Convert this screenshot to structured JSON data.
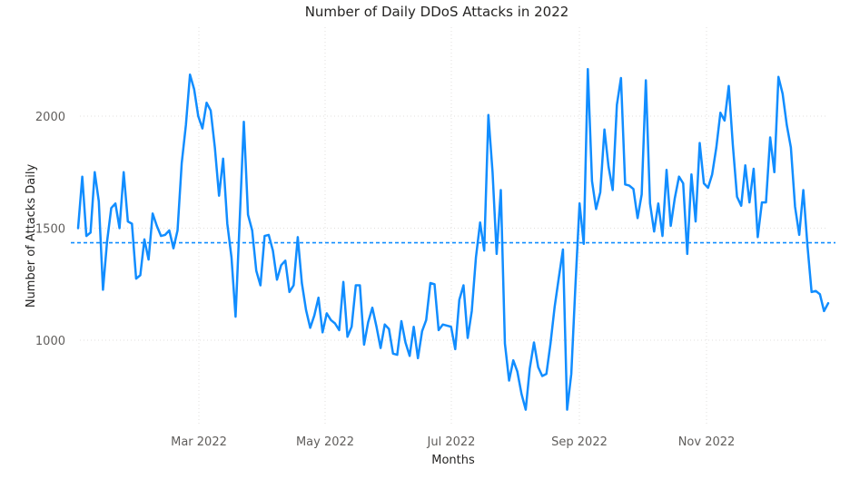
{
  "chart_data": {
    "type": "line",
    "title": "Number of Daily DDoS Attacks in 2022",
    "xlabel": "Months",
    "ylabel": "Number of Attacks Daily",
    "x_ticks": [
      "Mar 2022",
      "May 2022",
      "Jul 2022",
      "Sep 2022",
      "Nov 2022"
    ],
    "y_ticks": [
      1000,
      1500,
      2000
    ],
    "ylim": [
      680,
      2240
    ],
    "grid": "dotted",
    "average_line": 1435,
    "series": [
      {
        "color": "#118DFF",
        "y": [
          1500,
          1730,
          1465,
          1480,
          1750,
          1620,
          1225,
          1440,
          1590,
          1610,
          1500,
          1750,
          1530,
          1520,
          1275,
          1290,
          1450,
          1360,
          1565,
          1510,
          1465,
          1470,
          1490,
          1410,
          1490,
          1790,
          1960,
          2185,
          2120,
          2000,
          1945,
          2060,
          2025,
          1860,
          1645,
          1810,
          1520,
          1370,
          1105,
          1540,
          1975,
          1560,
          1490,
          1310,
          1245,
          1465,
          1470,
          1400,
          1270,
          1335,
          1355,
          1215,
          1245,
          1460,
          1255,
          1135,
          1055,
          1110,
          1190,
          1035,
          1120,
          1090,
          1075,
          1045,
          1260,
          1015,
          1060,
          1245,
          1245,
          980,
          1080,
          1145,
          1060,
          965,
          1070,
          1050,
          940,
          935,
          1085,
          990,
          930,
          1060,
          920,
          1040,
          1090,
          1255,
          1250,
          1045,
          1070,
          1065,
          1060,
          960,
          1180,
          1245,
          1010,
          1130,
          1370,
          1525,
          1400,
          2005,
          1750,
          1385,
          1670,
          985,
          820,
          910,
          860,
          760,
          690,
          875,
          990,
          880,
          840,
          850,
          985,
          1150,
          1280,
          1405,
          690,
          850,
          1240,
          1610,
          1430,
          2210,
          1710,
          1585,
          1660,
          1940,
          1775,
          1670,
          2050,
          2170,
          1695,
          1690,
          1675,
          1545,
          1650,
          2160,
          1610,
          1485,
          1610,
          1465,
          1760,
          1510,
          1635,
          1730,
          1700,
          1385,
          1740,
          1530,
          1880,
          1700,
          1680,
          1740,
          1860,
          2015,
          1980,
          2135,
          1870,
          1640,
          1600,
          1780,
          1615,
          1765,
          1460,
          1615,
          1615,
          1905,
          1750,
          2175,
          2100,
          1960,
          1860,
          1595,
          1470,
          1670,
          1420,
          1215,
          1220,
          1205,
          1130,
          1165
        ]
      }
    ]
  }
}
